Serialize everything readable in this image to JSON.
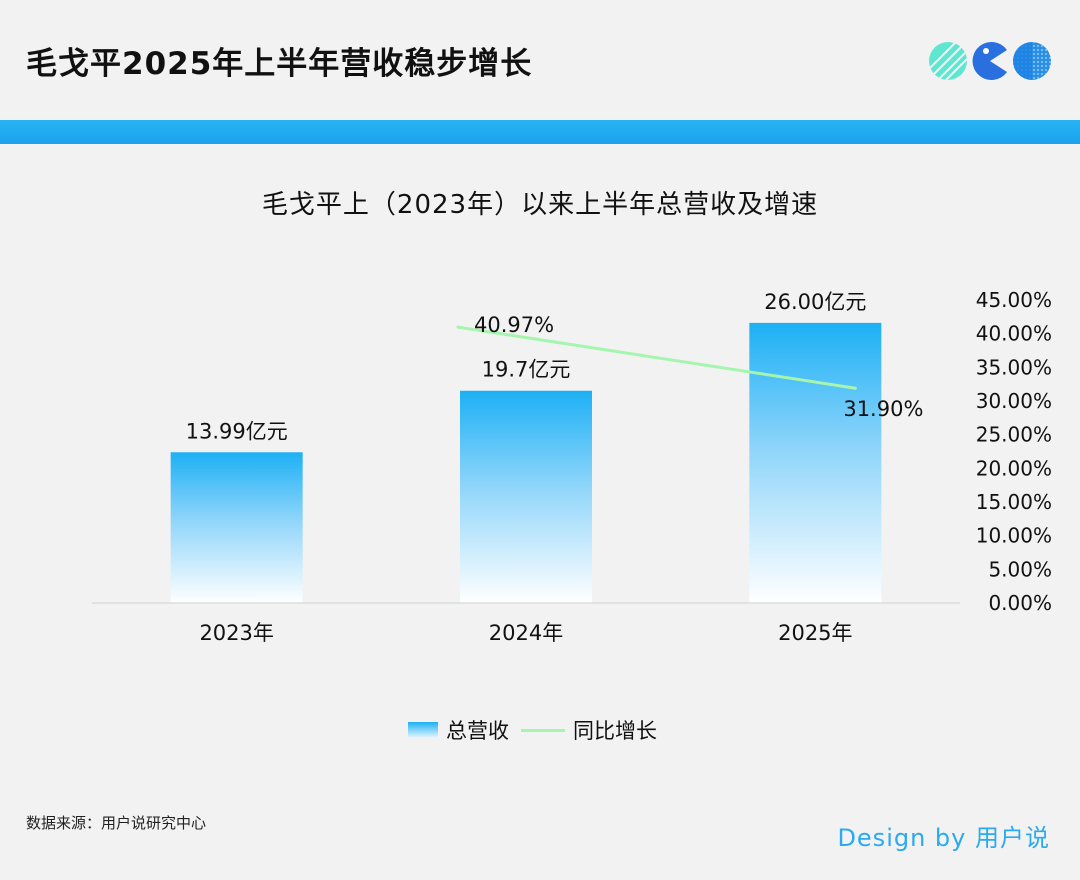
{
  "header": {
    "title": "毛戈平2025年上半年营收稳步增长"
  },
  "logo": {
    "icons": [
      "striped-circle-icon",
      "pacman-icon",
      "dotted-circle-icon"
    ]
  },
  "colors": {
    "accent": "#1ea8f0",
    "bar_top": "#1db0f5",
    "line": "#a4f5ad"
  },
  "chart_data": {
    "type": "bar+line",
    "title": "毛戈平上（2023年）以来上半年总营收及增速",
    "categories": [
      "2023年",
      "2024年",
      "2025年"
    ],
    "series": [
      {
        "name": "总营收",
        "type": "bar",
        "values": [
          13.99,
          19.7,
          26.0
        ],
        "labels": [
          "13.99亿元",
          "19.7亿元",
          "26.00亿元"
        ]
      },
      {
        "name": "同比增长",
        "type": "line",
        "axis": "right",
        "x": [
          "2024年",
          "2025年"
        ],
        "values": [
          40.97,
          31.9
        ],
        "labels": [
          "40.97%",
          "31.90%"
        ]
      }
    ],
    "y_left": {
      "range": [
        0,
        31
      ],
      "visible": false
    },
    "y_right": {
      "range": [
        0,
        45
      ],
      "ticks": [
        "0.00%",
        "5.00%",
        "10.00%",
        "15.00%",
        "20.00%",
        "25.00%",
        "30.00%",
        "35.00%",
        "40.00%",
        "45.00%"
      ]
    },
    "grid": false,
    "legend": "bottom-center"
  },
  "footer": {
    "source": "数据来源：用户说研究中心",
    "credit": "Design by 用户说"
  }
}
